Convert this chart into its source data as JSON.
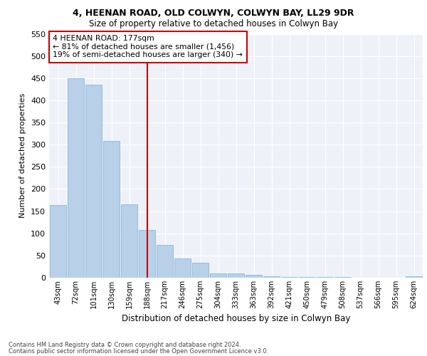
{
  "title1": "4, HEENAN ROAD, OLD COLWYN, COLWYN BAY, LL29 9DR",
  "title2": "Size of property relative to detached houses in Colwyn Bay",
  "xlabel": "Distribution of detached houses by size in Colwyn Bay",
  "ylabel": "Number of detached properties",
  "categories": [
    "43sqm",
    "72sqm",
    "101sqm",
    "130sqm",
    "159sqm",
    "188sqm",
    "217sqm",
    "246sqm",
    "275sqm",
    "304sqm",
    "333sqm",
    "363sqm",
    "392sqm",
    "421sqm",
    "450sqm",
    "479sqm",
    "508sqm",
    "537sqm",
    "566sqm",
    "595sqm",
    "624sqm"
  ],
  "values": [
    163,
    450,
    435,
    308,
    165,
    107,
    74,
    43,
    33,
    10,
    10,
    6,
    3,
    2,
    1,
    1,
    1,
    0,
    0,
    0,
    4
  ],
  "bar_color": "#b8d0e8",
  "bar_edge_color": "#7bafd4",
  "vline_x": 5.0,
  "vline_color": "#cc0000",
  "annotation_text": "4 HEENAN ROAD: 177sqm\n← 81% of detached houses are smaller (1,456)\n19% of semi-detached houses are larger (340) →",
  "annotation_box_color": "#cc0000",
  "ylim": [
    0,
    550
  ],
  "yticks": [
    0,
    50,
    100,
    150,
    200,
    250,
    300,
    350,
    400,
    450,
    500,
    550
  ],
  "footer1": "Contains HM Land Registry data © Crown copyright and database right 2024.",
  "footer2": "Contains public sector information licensed under the Open Government Licence v3.0.",
  "bg_color": "#eef2f8"
}
